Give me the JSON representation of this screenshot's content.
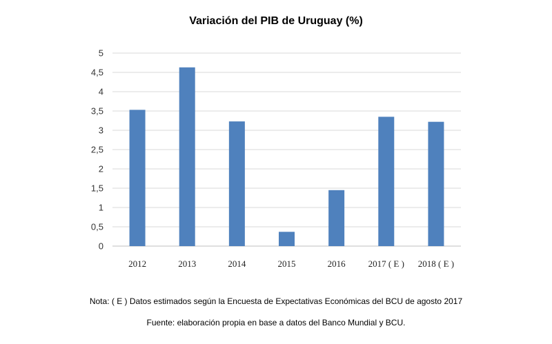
{
  "chart_data": {
    "type": "bar",
    "title": "Variación del PIB de Uruguay (%)",
    "categories": [
      "2012",
      "2013",
      "2014",
      "2015",
      "2016",
      "2017 ( E )",
      "2018 ( E )"
    ],
    "values": [
      3.53,
      4.63,
      3.23,
      0.37,
      1.45,
      3.35,
      3.22
    ],
    "ylim": [
      0,
      5
    ],
    "yticks": [
      "0",
      "0,5",
      "1",
      "1,5",
      "2",
      "2,5",
      "3",
      "3,5",
      "4",
      "4,5",
      "5"
    ],
    "grid": true,
    "bar_color": "#4f81bd"
  },
  "footer": {
    "note": "Nota: ( E ) Datos estimados según la Encuesta de Expectativas Económicas del BCU de agosto 2017",
    "source": "Fuente: elaboración propia en base a datos del Banco Mundial y BCU."
  }
}
